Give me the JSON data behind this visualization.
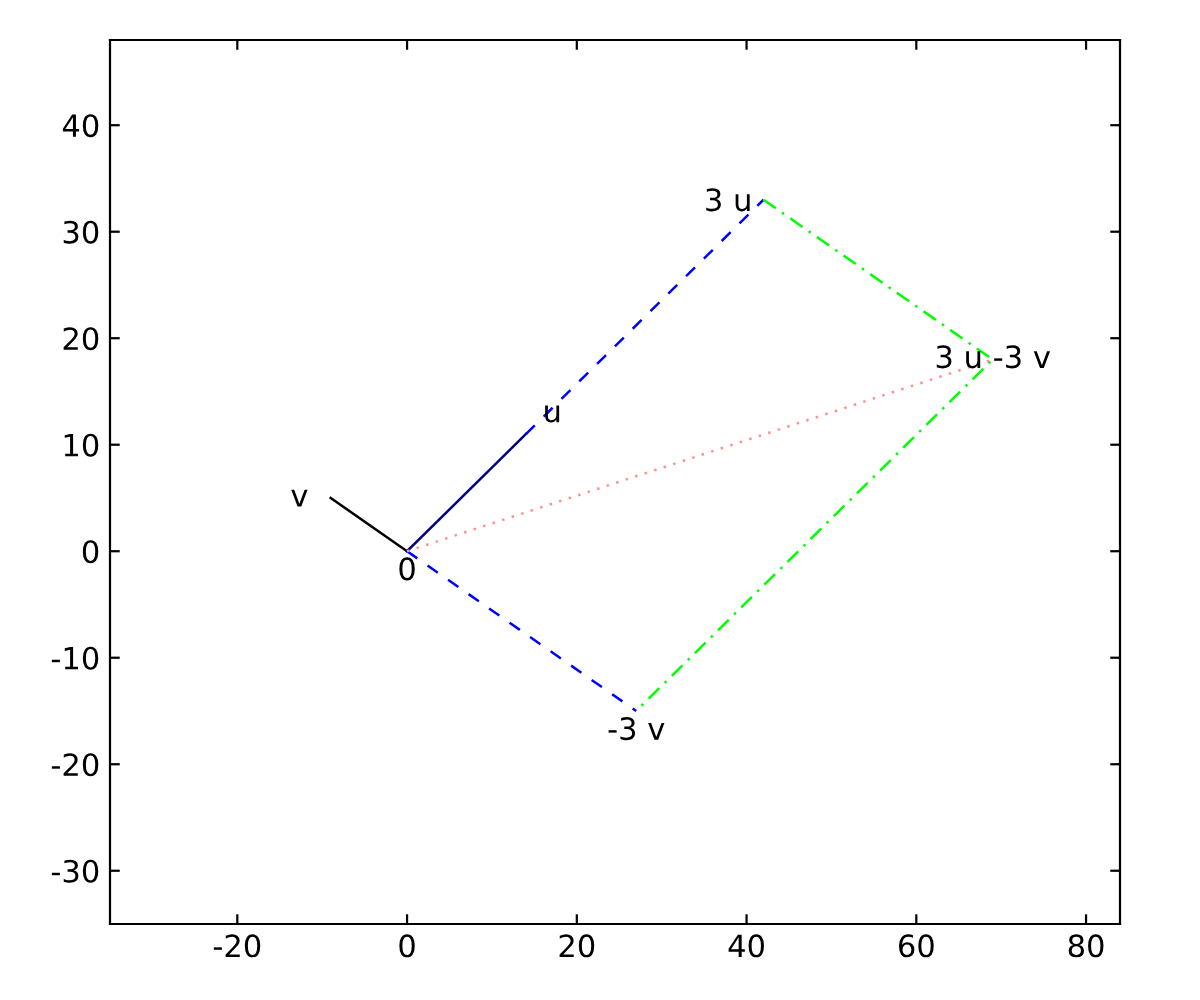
{
  "chart_data": {
    "type": "line",
    "series": [
      {
        "color": "#000000",
        "line_style": "solid",
        "x": [
          0,
          -9
        ],
        "values": [
          0,
          5
        ]
      },
      {
        "color": "#000080",
        "line_style": "solid",
        "x": [
          0,
          14
        ],
        "values": [
          0,
          11
        ]
      },
      {
        "color": "#0000ff",
        "line_style": "dashed",
        "x": [
          14,
          42
        ],
        "values": [
          11,
          33
        ]
      },
      {
        "color": "#0000ff",
        "line_style": "dashed",
        "x": [
          0,
          27
        ],
        "values": [
          0,
          -15
        ]
      },
      {
        "color": "#00ff00",
        "line_style": "dashdot",
        "x": [
          42,
          69,
          27
        ],
        "values": [
          33,
          18,
          -15
        ]
      },
      {
        "color": "#ff9090",
        "line_style": "dotted",
        "x": [
          0,
          69
        ],
        "values": [
          0,
          18
        ]
      }
    ],
    "annotations": [
      {
        "text": "v",
        "x": -9,
        "y": 5
      },
      {
        "text": "u",
        "x": 14,
        "y": 11
      },
      {
        "text": "0",
        "x": 0,
        "y": 0
      },
      {
        "text": "3 u",
        "x": 42,
        "y": 33
      },
      {
        "text": "-3 v",
        "x": 27,
        "y": -15
      },
      {
        "text": "3 u -3 v",
        "x": 69,
        "y": 18
      }
    ],
    "xlim": [
      -35,
      84
    ],
    "ylim": [
      -35,
      48
    ],
    "xticks": [
      -20,
      0,
      20,
      40,
      60,
      80
    ],
    "yticks": [
      -30,
      -20,
      -10,
      0,
      10,
      20,
      30,
      40
    ],
    "grid": false,
    "marker": "none"
  }
}
